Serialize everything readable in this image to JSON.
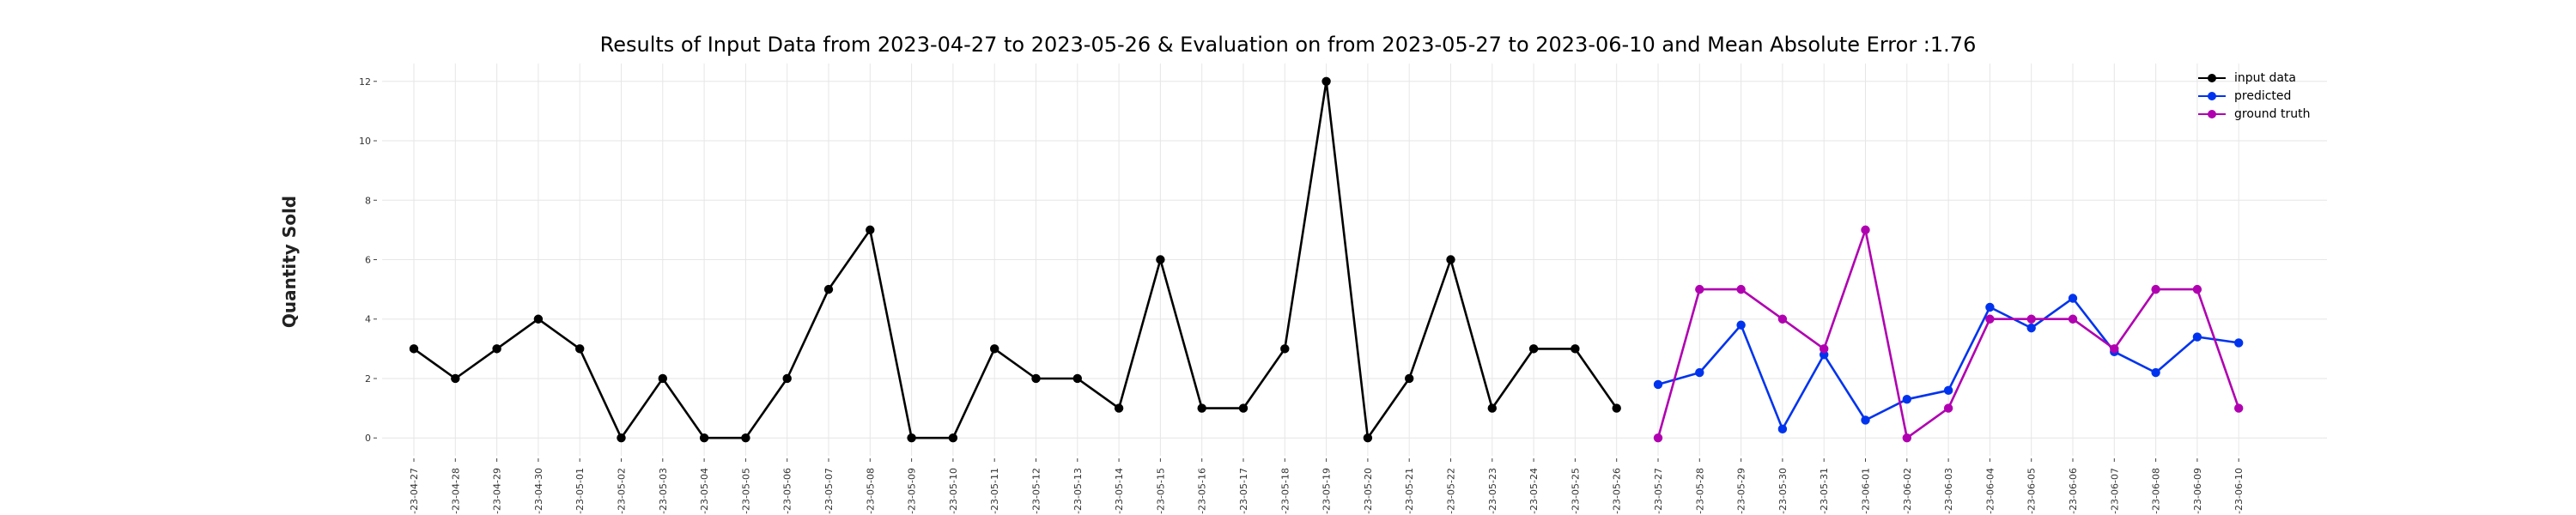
{
  "chart_data": {
    "type": "line",
    "title": "Results of Input Data from 2023-04-27 to 2023-05-26 & Evaluation on from 2023-05-27 to 2023-06-10 and Mean Absolute Error  :1.76",
    "xlabel": "",
    "ylabel": "Quantity Sold",
    "ylim": [
      -0.6,
      12.6
    ],
    "yticks": [
      0,
      2,
      4,
      6,
      8,
      10,
      12
    ],
    "grid": true,
    "legend_position": "top-right",
    "x": [
      "2023-04-27",
      "2023-04-28",
      "2023-04-29",
      "2023-04-30",
      "2023-05-01",
      "2023-05-02",
      "2023-05-03",
      "2023-05-04",
      "2023-05-05",
      "2023-05-06",
      "2023-05-07",
      "2023-05-08",
      "2023-05-09",
      "2023-05-10",
      "2023-05-11",
      "2023-05-12",
      "2023-05-13",
      "2023-05-14",
      "2023-05-15",
      "2023-05-16",
      "2023-05-17",
      "2023-05-18",
      "2023-05-19",
      "2023-05-20",
      "2023-05-21",
      "2023-05-22",
      "2023-05-23",
      "2023-05-24",
      "2023-05-25",
      "2023-05-26",
      "2023-05-27",
      "2023-05-28",
      "2023-05-29",
      "2023-05-30",
      "2023-05-31",
      "2023-06-01",
      "2023-06-02",
      "2023-06-03",
      "2023-06-04",
      "2023-06-05",
      "2023-06-06",
      "2023-06-07",
      "2023-06-08",
      "2023-06-09",
      "2023-06-10"
    ],
    "xtick_labels": [
      "-23-04-27",
      "-23-04-28",
      "-23-04-29",
      "-23-04-30",
      "-23-05-01",
      "-23-05-02",
      "-23-05-03",
      "-23-05-04",
      "-23-05-05",
      "-23-05-06",
      "-23-05-07",
      "-23-05-08",
      "-23-05-09",
      "-23-05-10",
      "-23-05-11",
      "-23-05-12",
      "-23-05-13",
      "-23-05-14",
      "-23-05-15",
      "-23-05-16",
      "-23-05-17",
      "-23-05-18",
      "-23-05-19",
      "-23-05-20",
      "-23-05-21",
      "-23-05-22",
      "-23-05-23",
      "-23-05-24",
      "-23-05-25",
      "-23-05-26",
      "-23-05-27",
      "-23-05-28",
      "-23-05-29",
      "-23-05-30",
      "-23-05-31",
      "-23-06-01",
      "-23-06-02",
      "-23-06-03",
      "-23-06-04",
      "-23-06-05",
      "-23-06-06",
      "-23-06-07",
      "-23-06-08",
      "-23-06-09",
      "-23-06-10"
    ],
    "series": [
      {
        "name": "input data",
        "color": "#000000",
        "x": [
          "2023-04-27",
          "2023-04-28",
          "2023-04-29",
          "2023-04-30",
          "2023-05-01",
          "2023-05-02",
          "2023-05-03",
          "2023-05-04",
          "2023-05-05",
          "2023-05-06",
          "2023-05-07",
          "2023-05-08",
          "2023-05-09",
          "2023-05-10",
          "2023-05-11",
          "2023-05-12",
          "2023-05-13",
          "2023-05-14",
          "2023-05-15",
          "2023-05-16",
          "2023-05-17",
          "2023-05-18",
          "2023-05-19",
          "2023-05-20",
          "2023-05-21",
          "2023-05-22",
          "2023-05-23",
          "2023-05-24",
          "2023-05-25",
          "2023-05-26"
        ],
        "values": [
          3,
          2,
          3,
          4,
          3,
          0,
          2,
          0,
          0,
          2,
          5,
          7,
          0,
          0,
          3,
          2,
          2,
          1,
          6,
          1,
          1,
          3,
          12,
          0,
          2,
          6,
          1,
          3,
          3,
          1
        ]
      },
      {
        "name": "predicted",
        "color": "#0033ee",
        "x": [
          "2023-05-27",
          "2023-05-28",
          "2023-05-29",
          "2023-05-30",
          "2023-05-31",
          "2023-06-01",
          "2023-06-02",
          "2023-06-03",
          "2023-06-04",
          "2023-06-05",
          "2023-06-06",
          "2023-06-07",
          "2023-06-08",
          "2023-06-09",
          "2023-06-10"
        ],
        "values": [
          1.8,
          2.2,
          3.8,
          0.3,
          2.8,
          0.6,
          1.3,
          1.6,
          4.4,
          3.7,
          4.7,
          2.9,
          2.2,
          3.4,
          3.2
        ]
      },
      {
        "name": "ground truth",
        "color": "#b000b0",
        "x": [
          "2023-05-27",
          "2023-05-28",
          "2023-05-29",
          "2023-05-30",
          "2023-05-31",
          "2023-06-01",
          "2023-06-02",
          "2023-06-03",
          "2023-06-04",
          "2023-06-05",
          "2023-06-06",
          "2023-06-07",
          "2023-06-08",
          "2023-06-09",
          "2023-06-10"
        ],
        "values": [
          0,
          5,
          5,
          4,
          3,
          7,
          0,
          1,
          4,
          4,
          4,
          3,
          5,
          5,
          1
        ]
      }
    ]
  },
  "colors": {
    "grid": "#e6e6e6",
    "tick": "#444444"
  }
}
